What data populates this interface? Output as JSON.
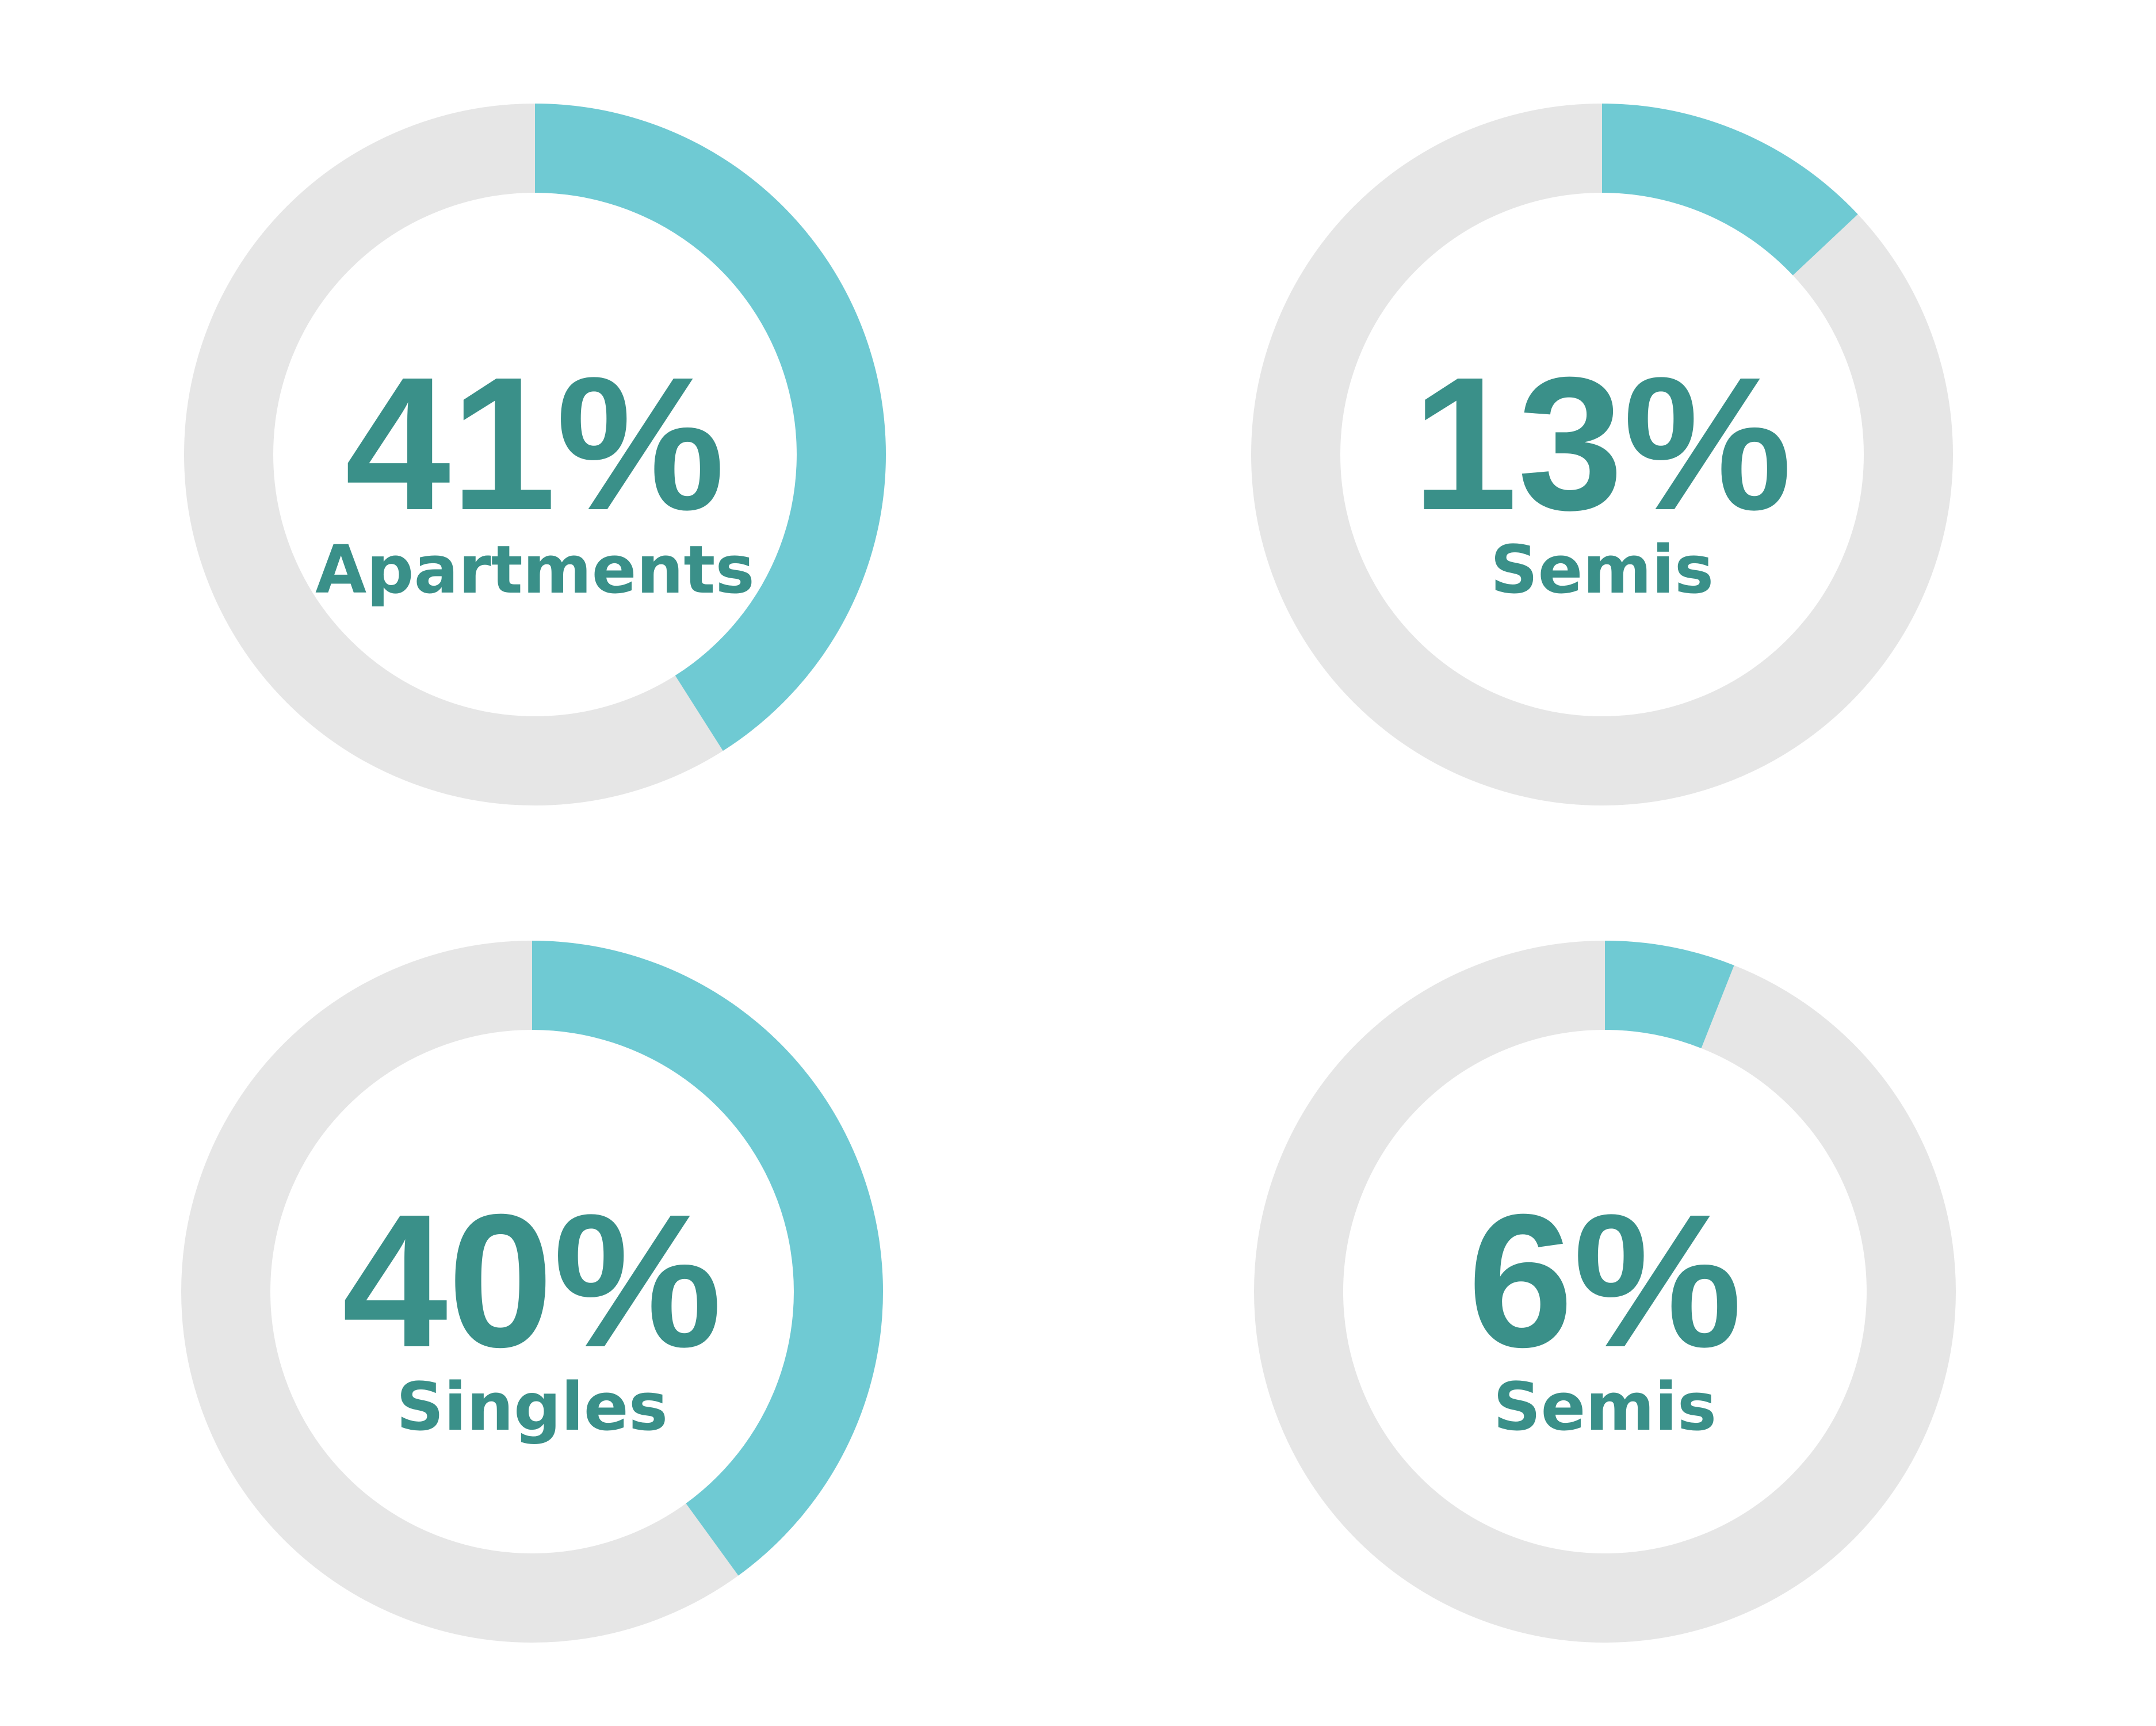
{
  "colors": {
    "accent": "#6FCAD3",
    "track": "#E6E6E6",
    "text": "#3A9089",
    "background": "#FFFFFF"
  },
  "chart_data": [
    {
      "type": "donut",
      "value": 41,
      "value_label": "41%",
      "label": "Apartments",
      "range": [
        0,
        100
      ]
    },
    {
      "type": "donut",
      "value": 13,
      "value_label": "13%",
      "label": "Semis",
      "range": [
        0,
        100
      ]
    },
    {
      "type": "donut",
      "value": 40,
      "value_label": "40%",
      "label": "Singles",
      "range": [
        0,
        100
      ]
    },
    {
      "type": "donut",
      "value": 6,
      "value_label": "6%",
      "label": "Semis",
      "range": [
        0,
        100
      ]
    }
  ]
}
